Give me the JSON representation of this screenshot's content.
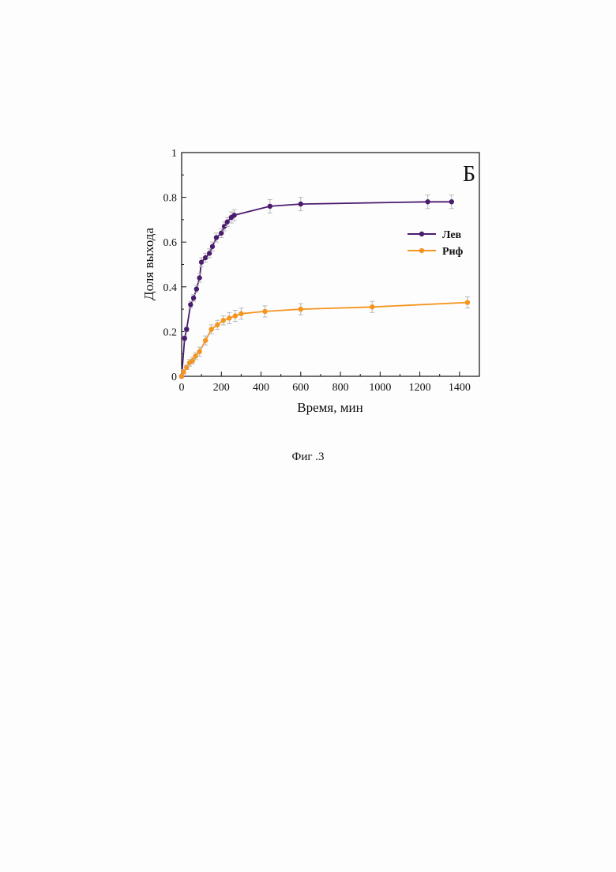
{
  "chart_data": {
    "type": "line",
    "panel_label": "Б",
    "xlabel": "Время, мин",
    "ylabel": "Доля выхода",
    "xlim": [
      0,
      1500
    ],
    "ylim": [
      0,
      1
    ],
    "x_ticks": [
      0,
      200,
      400,
      600,
      800,
      1000,
      1200,
      1400
    ],
    "y_ticks": [
      0,
      0.2,
      0.4,
      0.6,
      0.8,
      1
    ],
    "y_tick_labels": [
      "0",
      "0.2",
      "0.4",
      "0.6",
      "0.8",
      "1"
    ],
    "legend_position": "right-middle",
    "grid": false,
    "series": [
      {
        "name": "Лев",
        "color": "#4b1c6e",
        "marker": "circle",
        "points": [
          {
            "x": 0,
            "y": 0,
            "err": 0
          },
          {
            "x": 15,
            "y": 0.17,
            "err": 0.01
          },
          {
            "x": 25,
            "y": 0.21,
            "err": 0.01
          },
          {
            "x": 45,
            "y": 0.32,
            "err": 0.015
          },
          {
            "x": 60,
            "y": 0.35,
            "err": 0.015
          },
          {
            "x": 75,
            "y": 0.39,
            "err": 0.015
          },
          {
            "x": 90,
            "y": 0.44,
            "err": 0.02
          },
          {
            "x": 100,
            "y": 0.51,
            "err": 0.02
          },
          {
            "x": 120,
            "y": 0.53,
            "err": 0.02
          },
          {
            "x": 140,
            "y": 0.55,
            "err": 0.02
          },
          {
            "x": 155,
            "y": 0.58,
            "err": 0.02
          },
          {
            "x": 175,
            "y": 0.62,
            "err": 0.02
          },
          {
            "x": 200,
            "y": 0.64,
            "err": 0.02
          },
          {
            "x": 215,
            "y": 0.67,
            "err": 0.02
          },
          {
            "x": 230,
            "y": 0.69,
            "err": 0.02
          },
          {
            "x": 250,
            "y": 0.71,
            "err": 0.025
          },
          {
            "x": 265,
            "y": 0.72,
            "err": 0.025
          },
          {
            "x": 445,
            "y": 0.76,
            "err": 0.03
          },
          {
            "x": 600,
            "y": 0.77,
            "err": 0.03
          },
          {
            "x": 1240,
            "y": 0.78,
            "err": 0.03
          },
          {
            "x": 1360,
            "y": 0.78,
            "err": 0.03
          }
        ]
      },
      {
        "name": "Риф",
        "color": "#f5941e",
        "marker": "circle",
        "points": [
          {
            "x": 0,
            "y": 0,
            "err": 0
          },
          {
            "x": 10,
            "y": 0.02,
            "err": 0.01
          },
          {
            "x": 25,
            "y": 0.04,
            "err": 0.01
          },
          {
            "x": 40,
            "y": 0.06,
            "err": 0.015
          },
          {
            "x": 55,
            "y": 0.07,
            "err": 0.015
          },
          {
            "x": 70,
            "y": 0.09,
            "err": 0.015
          },
          {
            "x": 90,
            "y": 0.11,
            "err": 0.02
          },
          {
            "x": 120,
            "y": 0.16,
            "err": 0.02
          },
          {
            "x": 150,
            "y": 0.21,
            "err": 0.02
          },
          {
            "x": 180,
            "y": 0.23,
            "err": 0.02
          },
          {
            "x": 210,
            "y": 0.25,
            "err": 0.02
          },
          {
            "x": 240,
            "y": 0.26,
            "err": 0.025
          },
          {
            "x": 270,
            "y": 0.27,
            "err": 0.025
          },
          {
            "x": 300,
            "y": 0.28,
            "err": 0.025
          },
          {
            "x": 420,
            "y": 0.29,
            "err": 0.025
          },
          {
            "x": 600,
            "y": 0.3,
            "err": 0.025
          },
          {
            "x": 960,
            "y": 0.31,
            "err": 0.025
          },
          {
            "x": 1440,
            "y": 0.33,
            "err": 0.025
          }
        ]
      }
    ],
    "errorbar_color": "#b8b8b8"
  },
  "caption": "Фиг .3"
}
